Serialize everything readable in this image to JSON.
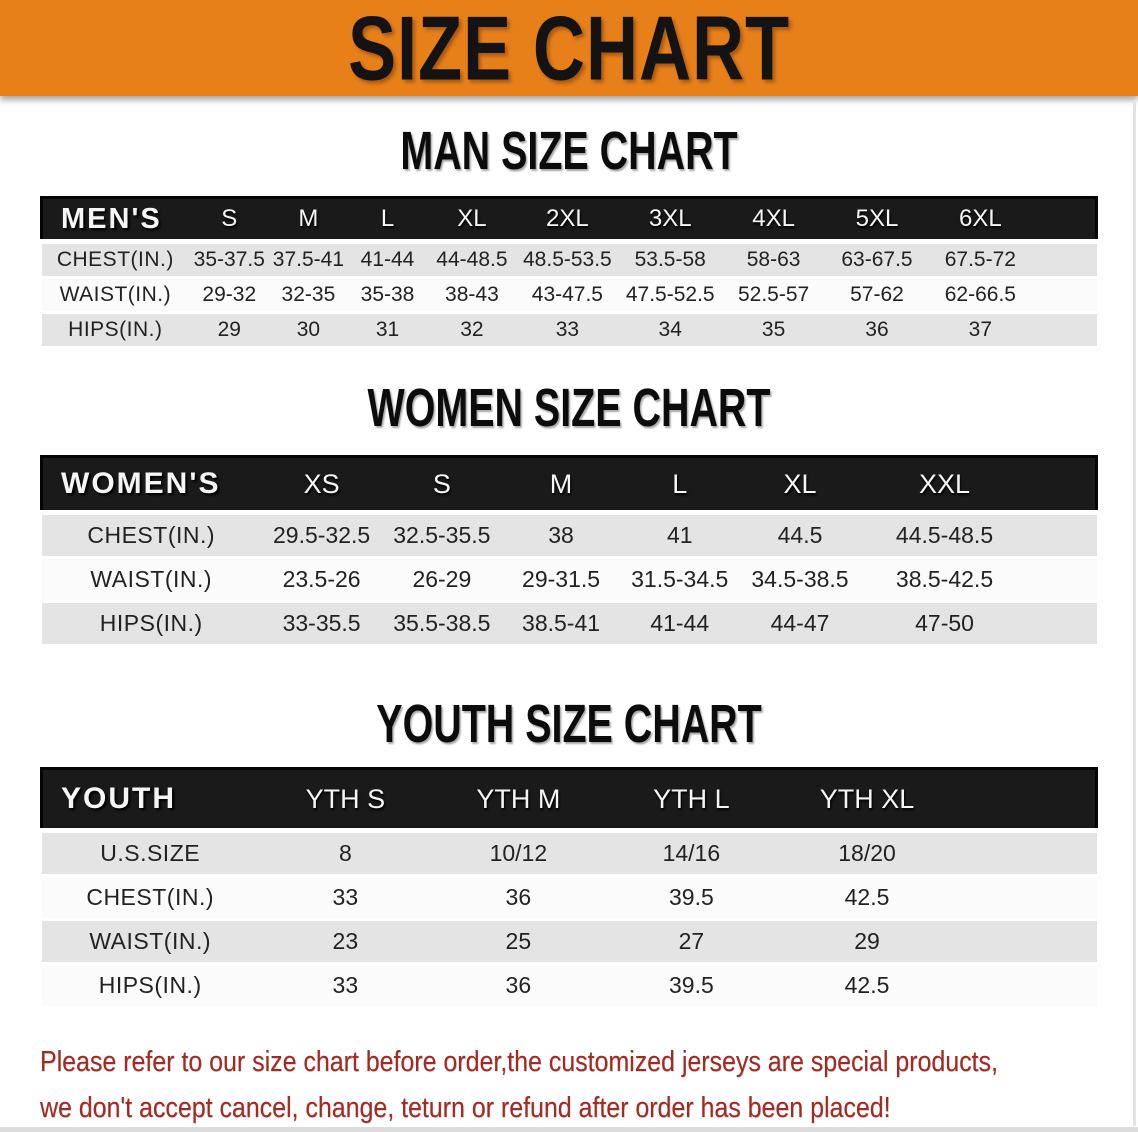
{
  "banner": {
    "title": "SIZE CHART"
  },
  "colors": {
    "banner_orange": "#E8801A",
    "table_header_black": "#1A1A1A",
    "row_gray": "#E4E4E4",
    "row_white": "#FBFBFB",
    "disclaimer_red": "#A32A22"
  },
  "sections": [
    {
      "heading": "MAN SIZE CHART",
      "table": {
        "corner_label": "MEN'S",
        "columns": [
          "S",
          "M",
          "L",
          "XL",
          "2XL",
          "3XL",
          "4XL",
          "5XL",
          "6XL"
        ],
        "rows": [
          {
            "label": "CHEST(IN.)",
            "values": [
              "35-37.5",
              "37.5-41",
              "41-44",
              "44-48.5",
              "48.5-53.5",
              "53.5-58",
              "58-63",
              "63-67.5",
              "67.5-72"
            ]
          },
          {
            "label": "WAIST(IN.)",
            "values": [
              "29-32",
              "32-35",
              "35-38",
              "38-43",
              "43-47.5",
              "47.5-52.5",
              "52.5-57",
              "57-62",
              "62-66.5"
            ]
          },
          {
            "label": "HIPS(IN.)",
            "values": [
              "29",
              "30",
              "31",
              "32",
              "33",
              "34",
              "35",
              "36",
              "37"
            ]
          }
        ]
      }
    },
    {
      "heading": "WOMEN SIZE CHART",
      "table": {
        "corner_label": "WOMEN'S",
        "columns": [
          "XS",
          "S",
          "M",
          "L",
          "XL",
          "XXL"
        ],
        "rows": [
          {
            "label": "CHEST(IN.)",
            "values": [
              "29.5-32.5",
              "32.5-35.5",
              "38",
              "41",
              "44.5",
              "44.5-48.5"
            ]
          },
          {
            "label": "WAIST(IN.)",
            "values": [
              "23.5-26",
              "26-29",
              "29-31.5",
              "31.5-34.5",
              "34.5-38.5",
              "38.5-42.5"
            ]
          },
          {
            "label": "HIPS(IN.)",
            "values": [
              "33-35.5",
              "35.5-38.5",
              "38.5-41",
              "41-44",
              "44-47",
              "47-50"
            ]
          }
        ]
      }
    },
    {
      "heading": "YOUTH SIZE CHART",
      "table": {
        "corner_label": "YOUTH",
        "columns": [
          "YTH S",
          "YTH M",
          "YTH L",
          "YTH XL"
        ],
        "rows": [
          {
            "label": "U.S.SIZE",
            "values": [
              "8",
              "10/12",
              "14/16",
              "18/20"
            ]
          },
          {
            "label": "CHEST(IN.)",
            "values": [
              "33",
              "36",
              "39.5",
              "42.5"
            ]
          },
          {
            "label": "WAIST(IN.)",
            "values": [
              "23",
              "25",
              "27",
              "29"
            ]
          },
          {
            "label": "HIPS(IN.)",
            "values": [
              "33",
              "36",
              "39.5",
              "42.5"
            ]
          }
        ]
      }
    }
  ],
  "disclaimer": {
    "line1": "Please refer to our size chart before order,the customized jerseys are special products,",
    "line2": "we don't accept cancel, change, teturn or refund after order has been placed!"
  }
}
